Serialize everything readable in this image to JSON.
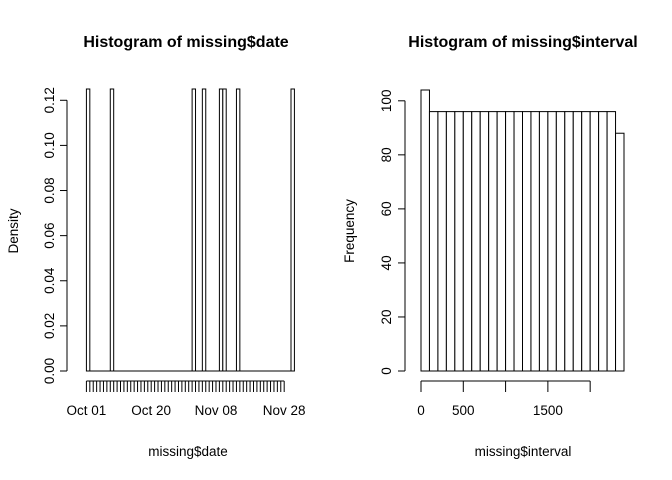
{
  "chart_data": [
    {
      "type": "bar",
      "title": "Histogram of missing$date",
      "xlabel": "missing$date",
      "ylabel": "Density",
      "x_domain": [
        "2012-09-30",
        "2012-11-30"
      ],
      "ylim": [
        0,
        0.125
      ],
      "y_ticks": [
        0.0,
        0.02,
        0.04,
        0.06,
        0.08,
        0.1,
        0.12
      ],
      "y_tick_labels": [
        "0.00",
        "0.02",
        "0.04",
        "0.06",
        "0.08",
        "0.10",
        "0.12"
      ],
      "x_ticks": [
        "2012-10-01",
        "2012-10-20",
        "2012-11-08",
        "2012-11-28"
      ],
      "x_tick_labels": [
        "Oct 01",
        "Oct 20",
        "Nov 08",
        "Nov 28"
      ],
      "bins": [
        {
          "start": "2012-10-01",
          "end": "2012-10-02",
          "value": 0.125
        },
        {
          "start": "2012-10-08",
          "end": "2012-10-09",
          "value": 0.125
        },
        {
          "start": "2012-11-01",
          "end": "2012-11-02",
          "value": 0.125
        },
        {
          "start": "2012-11-04",
          "end": "2012-11-05",
          "value": 0.125
        },
        {
          "start": "2012-11-09",
          "end": "2012-11-10",
          "value": 0.125
        },
        {
          "start": "2012-11-10",
          "end": "2012-11-11",
          "value": 0.125
        },
        {
          "start": "2012-11-14",
          "end": "2012-11-15",
          "value": 0.125
        },
        {
          "start": "2012-11-30",
          "end": "2012-12-01",
          "value": 0.125
        }
      ]
    },
    {
      "type": "bar",
      "title": "Histogram of missing$interval",
      "xlabel": "missing$interval",
      "ylabel": "Frequency",
      "xlim": [
        0,
        2400
      ],
      "ylim": [
        0,
        104
      ],
      "y_ticks": [
        0,
        20,
        40,
        60,
        80,
        100
      ],
      "y_tick_labels": [
        "0",
        "20",
        "40",
        "60",
        "80",
        "100"
      ],
      "x_ticks": [
        0,
        500,
        1000,
        1500,
        2000
      ],
      "x_tick_labels": [
        "0",
        "500",
        "",
        "1500",
        ""
      ],
      "bin_width": 100,
      "bin_start": 0,
      "values": [
        104,
        96,
        96,
        96,
        96,
        96,
        96,
        96,
        96,
        96,
        96,
        96,
        96,
        96,
        96,
        96,
        96,
        96,
        96,
        96,
        96,
        96,
        96,
        88
      ]
    }
  ]
}
